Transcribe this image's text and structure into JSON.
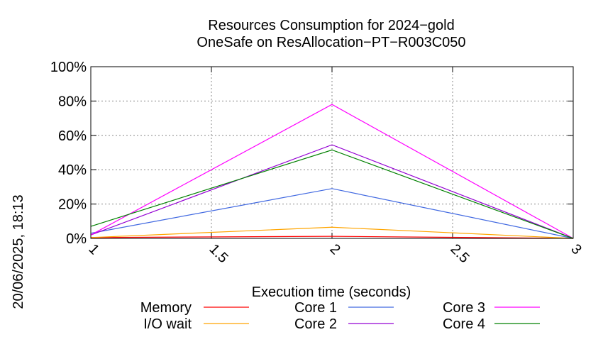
{
  "chart_data": {
    "type": "line",
    "title": "Resources Consumption for 2024−gold",
    "subtitle": "OneSafe on ResAllocation−PT−R003C050",
    "xlabel": "Execution time (seconds)",
    "ylabel": "",
    "side_label": "20/06/2025, 18:13",
    "x": [
      1,
      2,
      3
    ],
    "xlim": [
      1,
      3
    ],
    "ylim": [
      0,
      100
    ],
    "xticks": [
      {
        "value": 1,
        "label": "1"
      },
      {
        "value": 1.5,
        "label": "1.5"
      },
      {
        "value": 2,
        "label": "2"
      },
      {
        "value": 2.5,
        "label": "2.5"
      },
      {
        "value": 3,
        "label": "3"
      }
    ],
    "yticks": [
      {
        "value": 0,
        "label": "0%"
      },
      {
        "value": 20,
        "label": "20%"
      },
      {
        "value": 40,
        "label": "40%"
      },
      {
        "value": 60,
        "label": "60%"
      },
      {
        "value": 80,
        "label": "80%"
      },
      {
        "value": 100,
        "label": "100%"
      }
    ],
    "grid": true,
    "legend_position": "bottom",
    "series": [
      {
        "name": "Memory",
        "color": "#ff0000",
        "values": [
          0.5,
          1.2,
          0
        ]
      },
      {
        "name": "I/O wait",
        "color": "#ffa500",
        "values": [
          0.5,
          6.5,
          0
        ]
      },
      {
        "name": "Core 1",
        "color": "#4169e1",
        "values": [
          3,
          29,
          0
        ]
      },
      {
        "name": "Core 2",
        "color": "#9400d3",
        "values": [
          2,
          54.5,
          0
        ]
      },
      {
        "name": "Core 3",
        "color": "#ff00ff",
        "values": [
          2,
          78,
          0
        ]
      },
      {
        "name": "Core 4",
        "color": "#008000",
        "values": [
          7,
          51.5,
          0
        ]
      }
    ]
  }
}
